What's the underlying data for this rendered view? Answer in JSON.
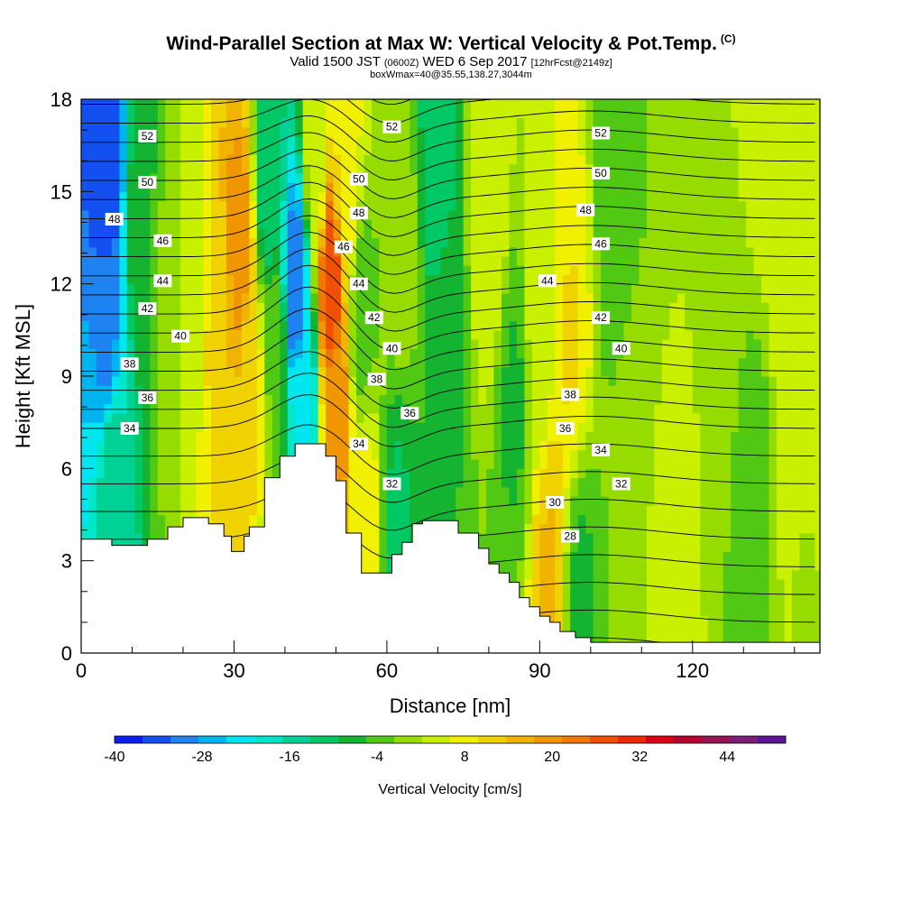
{
  "header": {
    "title": "Wind-Parallel Section at Max W: Vertical Velocity & Pot.Temp.",
    "copyright": "(C)",
    "valid_prefix": "Valid 1500 JST",
    "valid_utc": "(0600Z)",
    "valid_date": "WED 6 Sep 2017",
    "forecast": "[12hrFcst@2149z]",
    "boxinfo": "boxWmax=40@35.55,138.27,3044m"
  },
  "chart_data": {
    "type": "heatmap",
    "xlabel": "Distance [nm]",
    "ylabel": "Height [Kft MSL]",
    "xlim": [
      0,
      145
    ],
    "ylim": [
      0,
      18
    ],
    "x_ticks": [
      0,
      30,
      60,
      90,
      120
    ],
    "y_ticks": [
      0,
      3,
      6,
      9,
      12,
      15,
      18
    ],
    "colorbar": {
      "label": "Vertical Velocity [cm/s]",
      "min": -40,
      "max": 52,
      "tick_labels": [
        "-40",
        "-28",
        "-16",
        "-4",
        "8",
        "20",
        "32",
        "44"
      ],
      "tick_values": [
        -40,
        -28,
        -16,
        -4,
        8,
        20,
        32,
        44
      ],
      "colors": [
        "#0a1ef0",
        "#1450f0",
        "#1e82f0",
        "#00b4f0",
        "#00e6f0",
        "#00e6c8",
        "#00d296",
        "#00c864",
        "#14b432",
        "#50c814",
        "#96dc00",
        "#c8f000",
        "#f0f000",
        "#f0d200",
        "#f0b400",
        "#f09600",
        "#f07800",
        "#f05000",
        "#f02800",
        "#dc0014",
        "#b40032",
        "#961450",
        "#7a1e78",
        "#5a1494"
      ]
    },
    "terrain_kft": [
      [
        0,
        3.7
      ],
      [
        6,
        3.7
      ],
      [
        6,
        3.5
      ],
      [
        13,
        3.5
      ],
      [
        13,
        3.7
      ],
      [
        17,
        3.7
      ],
      [
        17,
        4.1
      ],
      [
        20,
        4.1
      ],
      [
        20,
        4.4
      ],
      [
        25,
        4.4
      ],
      [
        25,
        4.2
      ],
      [
        28,
        4.2
      ],
      [
        28,
        3.8
      ],
      [
        29.5,
        3.8
      ],
      [
        29.5,
        3.3
      ],
      [
        32,
        3.3
      ],
      [
        32,
        3.8
      ],
      [
        33,
        3.8
      ],
      [
        33,
        4.1
      ],
      [
        36,
        4.1
      ],
      [
        36,
        5.7
      ],
      [
        39,
        5.7
      ],
      [
        39,
        6.4
      ],
      [
        42,
        6.4
      ],
      [
        42,
        6.8
      ],
      [
        48,
        6.8
      ],
      [
        48,
        6.4
      ],
      [
        50,
        6.4
      ],
      [
        50,
        5.6
      ],
      [
        52,
        5.6
      ],
      [
        52,
        3.9
      ],
      [
        55,
        3.9
      ],
      [
        55,
        2.6
      ],
      [
        61,
        2.6
      ],
      [
        61,
        3.2
      ],
      [
        63,
        3.2
      ],
      [
        63,
        3.6
      ],
      [
        65,
        3.6
      ],
      [
        65,
        4.2
      ],
      [
        67,
        4.2
      ],
      [
        67,
        4.3
      ],
      [
        74,
        4.3
      ],
      [
        74,
        3.9
      ],
      [
        78,
        3.9
      ],
      [
        78,
        3.4
      ],
      [
        80,
        3.4
      ],
      [
        80,
        2.9
      ],
      [
        82,
        2.9
      ],
      [
        82,
        2.6
      ],
      [
        84,
        2.6
      ],
      [
        84,
        2.3
      ],
      [
        86,
        2.3
      ],
      [
        86,
        1.8
      ],
      [
        88,
        1.8
      ],
      [
        88,
        1.5
      ],
      [
        90,
        1.5
      ],
      [
        90,
        1.2
      ],
      [
        92,
        1.2
      ],
      [
        92,
        1.0
      ],
      [
        94,
        1.0
      ],
      [
        94,
        0.7
      ],
      [
        97,
        0.7
      ],
      [
        97,
        0.5
      ],
      [
        100,
        0.5
      ],
      [
        100,
        0.35
      ],
      [
        145,
        0.35
      ]
    ],
    "velocity_bands": [
      {
        "x": 5,
        "y": 10,
        "v": -30
      },
      {
        "x": 5,
        "y": 16,
        "v": -36
      },
      {
        "x": 6,
        "y": 6,
        "v": -14
      },
      {
        "x": 12,
        "y": 14,
        "v": -6
      },
      {
        "x": 17,
        "y": 11,
        "v": 0
      },
      {
        "x": 22,
        "y": 12,
        "v": 4
      },
      {
        "x": 27,
        "y": 11,
        "v": 12
      },
      {
        "x": 31,
        "y": 13,
        "v": 20
      },
      {
        "x": 33,
        "y": 9,
        "v": 12
      },
      {
        "x": 37,
        "y": 15,
        "v": -12
      },
      {
        "x": 38,
        "y": 10,
        "v": -2
      },
      {
        "x": 42,
        "y": 12,
        "v": -32
      },
      {
        "x": 44,
        "y": 8,
        "v": -22
      },
      {
        "x": 46,
        "y": 16,
        "v": 4
      },
      {
        "x": 49,
        "y": 12,
        "v": 28
      },
      {
        "x": 50,
        "y": 8,
        "v": 20
      },
      {
        "x": 52,
        "y": 15,
        "v": 8
      },
      {
        "x": 55,
        "y": 11,
        "v": -4
      },
      {
        "x": 56,
        "y": 4,
        "v": 8
      },
      {
        "x": 62,
        "y": 4,
        "v": -10
      },
      {
        "x": 63,
        "y": 13,
        "v": 0
      },
      {
        "x": 70,
        "y": 16,
        "v": -12
      },
      {
        "x": 72,
        "y": 10,
        "v": -6
      },
      {
        "x": 80,
        "y": 14,
        "v": 6
      },
      {
        "x": 85,
        "y": 8,
        "v": -6
      },
      {
        "x": 90,
        "y": 10,
        "v": 4
      },
      {
        "x": 92,
        "y": 3,
        "v": 14
      },
      {
        "x": 96,
        "y": 10,
        "v": 10
      },
      {
        "x": 98,
        "y": 2,
        "v": -6
      },
      {
        "x": 105,
        "y": 14,
        "v": -4
      },
      {
        "x": 108,
        "y": 7,
        "v": 0
      },
      {
        "x": 115,
        "y": 2,
        "v": 4
      },
      {
        "x": 125,
        "y": 12,
        "v": 2
      },
      {
        "x": 132,
        "y": 5,
        "v": -4
      },
      {
        "x": 135,
        "y": 17,
        "v": 4
      },
      {
        "x": 140,
        "y": 8,
        "v": 6
      },
      {
        "x": 142,
        "y": 2,
        "v": 2
      }
    ],
    "isotherm_labels": [
      {
        "text": "52",
        "x": 13,
        "y": 16.8
      },
      {
        "text": "50",
        "x": 13,
        "y": 15.3
      },
      {
        "text": "48",
        "x": 6.5,
        "y": 14.1
      },
      {
        "text": "46",
        "x": 16,
        "y": 13.4
      },
      {
        "text": "44",
        "x": 16,
        "y": 12.1
      },
      {
        "text": "42",
        "x": 13,
        "y": 11.2
      },
      {
        "text": "40",
        "x": 19.5,
        "y": 10.3
      },
      {
        "text": "38",
        "x": 9.5,
        "y": 9.4
      },
      {
        "text": "36",
        "x": 13,
        "y": 8.3
      },
      {
        "text": "34",
        "x": 9.5,
        "y": 7.3
      },
      {
        "text": "52",
        "x": 61,
        "y": 17.1
      },
      {
        "text": "50",
        "x": 54.5,
        "y": 15.4
      },
      {
        "text": "48",
        "x": 54.5,
        "y": 14.3
      },
      {
        "text": "46",
        "x": 51.5,
        "y": 13.2
      },
      {
        "text": "44",
        "x": 54.5,
        "y": 12.0
      },
      {
        "text": "42",
        "x": 57.5,
        "y": 10.9
      },
      {
        "text": "40",
        "x": 61,
        "y": 9.9
      },
      {
        "text": "38",
        "x": 58,
        "y": 8.9
      },
      {
        "text": "36",
        "x": 64.5,
        "y": 7.8
      },
      {
        "text": "34",
        "x": 54.5,
        "y": 6.8
      },
      {
        "text": "32",
        "x": 61,
        "y": 5.5
      },
      {
        "text": "52",
        "x": 102,
        "y": 16.9
      },
      {
        "text": "50",
        "x": 102,
        "y": 15.6
      },
      {
        "text": "48",
        "x": 99,
        "y": 14.4
      },
      {
        "text": "46",
        "x": 102,
        "y": 13.3
      },
      {
        "text": "44",
        "x": 91.5,
        "y": 12.1
      },
      {
        "text": "42",
        "x": 102,
        "y": 10.9
      },
      {
        "text": "40",
        "x": 106,
        "y": 9.9
      },
      {
        "text": "38",
        "x": 96,
        "y": 8.4
      },
      {
        "text": "36",
        "x": 95,
        "y": 7.3
      },
      {
        "text": "34",
        "x": 102,
        "y": 6.6
      },
      {
        "text": "32",
        "x": 106,
        "y": 5.5
      },
      {
        "text": "30",
        "x": 93,
        "y": 4.9
      },
      {
        "text": "28",
        "x": 96,
        "y": 3.8
      }
    ]
  }
}
